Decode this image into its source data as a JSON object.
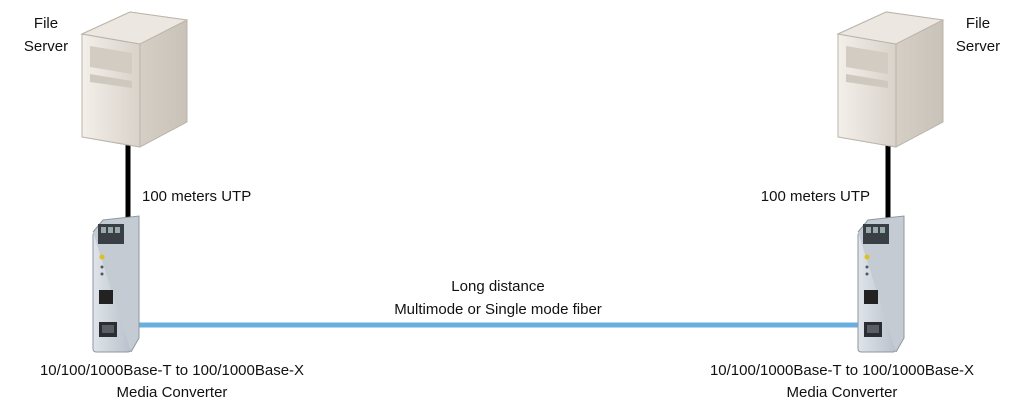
{
  "left": {
    "server_label": [
      "File",
      "Server"
    ],
    "cable_label": "100 meters UTP",
    "converter_label": [
      "10/100/1000Base-T to 100/1000Base-X",
      "Media Converter"
    ]
  },
  "right": {
    "server_label": [
      "File",
      "Server"
    ],
    "cable_label": "100 meters UTP",
    "converter_label": [
      "10/100/1000Base-T to 100/1000Base-X",
      "Media Converter"
    ]
  },
  "link": {
    "label": [
      "Long distance",
      "Multimode or Single mode fiber"
    ]
  }
}
